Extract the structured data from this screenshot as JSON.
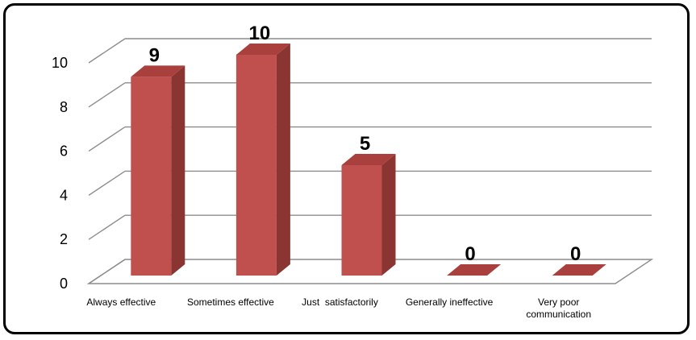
{
  "chart_data": {
    "type": "bar",
    "style": "3d-column",
    "categories": [
      "Always effective",
      "Sometimes effective",
      "Just  satisfactorily",
      "Generally ineffective",
      "Very poor communication"
    ],
    "values": [
      9,
      10,
      5,
      0,
      0
    ],
    "data_labels": [
      "9",
      "10",
      "5",
      "0",
      "0"
    ],
    "y_ticks": [
      "0",
      "2",
      "4",
      "6",
      "8",
      "10"
    ],
    "ylim": [
      0,
      10
    ],
    "grid": true,
    "legend": false,
    "colors": {
      "bar_front": "#c0504d",
      "bar_side": "#8b3533",
      "bar_top": "#a9403d",
      "grid": "#8c8c8c"
    }
  }
}
